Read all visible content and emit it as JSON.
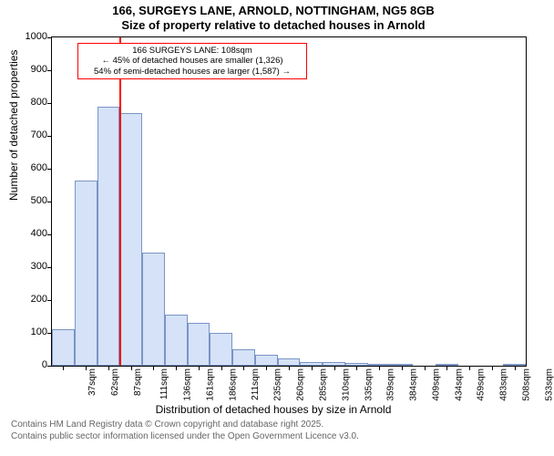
{
  "chart": {
    "type": "histogram",
    "title_line1": "166, SURGEYS LANE, ARNOLD, NOTTINGHAM, NG5 8GB",
    "title_line2": "Size of property relative to detached houses in Arnold",
    "title_fontsize": 13,
    "y_axis": {
      "label": "Number of detached properties",
      "label_fontsize": 12,
      "min": 0,
      "max": 1000,
      "tick_step": 100,
      "ticks": [
        0,
        100,
        200,
        300,
        400,
        500,
        600,
        700,
        800,
        900,
        1000
      ]
    },
    "x_axis": {
      "label": "Distribution of detached houses by size in Arnold",
      "label_fontsize": 12,
      "tick_labels": [
        "37sqm",
        "62sqm",
        "87sqm",
        "111sqm",
        "136sqm",
        "161sqm",
        "186sqm",
        "211sqm",
        "235sqm",
        "260sqm",
        "285sqm",
        "310sqm",
        "335sqm",
        "359sqm",
        "384sqm",
        "409sqm",
        "434sqm",
        "459sqm",
        "483sqm",
        "508sqm",
        "533sqm"
      ],
      "tick_fontsize": 10
    },
    "bars": {
      "values": [
        110,
        565,
        790,
        770,
        345,
        155,
        130,
        100,
        50,
        32,
        22,
        10,
        10,
        8,
        6,
        5,
        0,
        3,
        0,
        0,
        2
      ],
      "fill_color": "#d5e2f7",
      "border_color": "#7a94c4"
    },
    "marker": {
      "position_index": 3,
      "relative_position": 0.0,
      "color": "#ff0000",
      "line_width": 2
    },
    "annotation": {
      "border_color": "#ff0000",
      "background_color": "#ffffff",
      "fontsize": 9.5,
      "lines": [
        "166 SURGEYS LANE: 108sqm",
        "← 45% of detached houses are smaller (1,326)",
        "54% of semi-detached houses are larger (1,587) →"
      ]
    },
    "plot": {
      "background_color": "#ffffff",
      "border_color": "#000000"
    },
    "footer": {
      "line1": "Contains HM Land Registry data © Crown copyright and database right 2025.",
      "line2": "Contains public sector information licensed under the Open Government Licence v3.0.",
      "color": "#666666",
      "fontsize": 10
    }
  }
}
